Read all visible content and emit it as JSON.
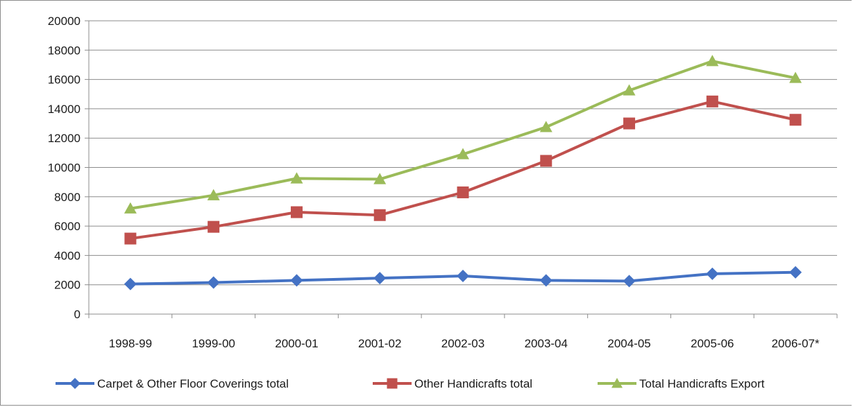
{
  "chart_data": {
    "type": "line",
    "title": "",
    "xlabel": "",
    "ylabel": "",
    "ylim": [
      0,
      20000
    ],
    "y_ticks": [
      "0",
      "2000",
      "4000",
      "6000",
      "8000",
      "10000",
      "12000",
      "14000",
      "16000",
      "18000",
      "20000"
    ],
    "y_tick_values": [
      0,
      2000,
      4000,
      6000,
      8000,
      10000,
      12000,
      14000,
      16000,
      18000,
      20000
    ],
    "categories": [
      "1998-99",
      "1999-00",
      "2000-01",
      "2001-02",
      "2002-03",
      "2003-04",
      "2004-05",
      "2005-06",
      "2006-07*"
    ],
    "grid": "horizontal",
    "legend_position": "bottom",
    "series": [
      {
        "name": "Carpet & Other Floor Coverings total",
        "color": "#4472c4",
        "marker": "diamond",
        "values": [
          2050,
          2150,
          2300,
          2450,
          2600,
          2300,
          2250,
          2750,
          2850
        ]
      },
      {
        "name": "Other Handicrafts total",
        "color": "#c0504d",
        "marker": "square",
        "values": [
          5150,
          5950,
          6950,
          6750,
          8300,
          10450,
          13000,
          14500,
          13250
        ]
      },
      {
        "name": "Total Handicrafts Export",
        "color": "#9bbb59",
        "marker": "triangle",
        "values": [
          7200,
          8100,
          9250,
          9200,
          10900,
          12750,
          15250,
          17250,
          16100
        ]
      }
    ]
  }
}
